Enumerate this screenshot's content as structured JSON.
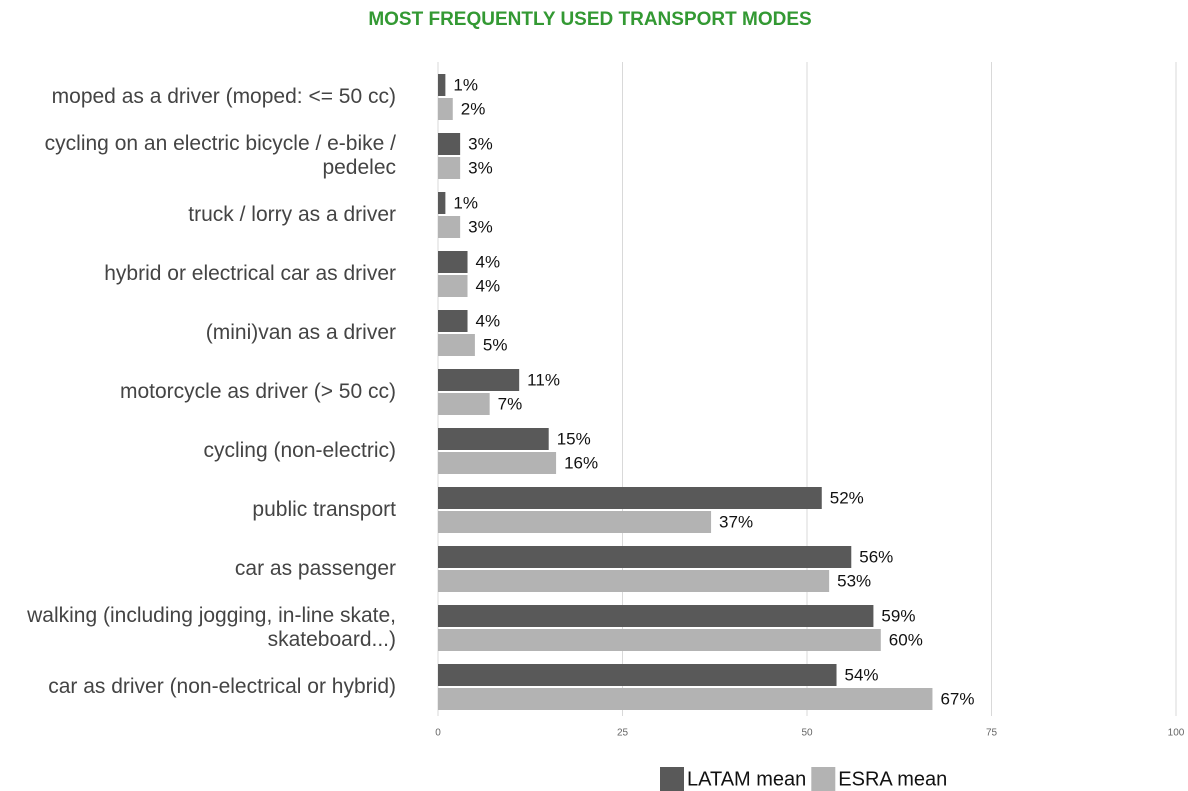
{
  "chart_data": {
    "type": "bar",
    "orientation": "horizontal",
    "title": "MOST FREQUENTLY USED TRANSPORT MODES",
    "categories": [
      "moped as a driver (moped: <= 50 cc)",
      "cycling on an electric bicycle / e-bike / pedelec",
      "truck / lorry as a driver",
      "hybrid or electrical car as driver",
      "(mini)van as a driver",
      "motorcycle as driver (> 50 cc)",
      "cycling (non-electric)",
      "public transport",
      "car as passenger",
      "walking (including jogging, in-line skate, skateboard...)",
      "car as driver (non-electrical or hybrid)"
    ],
    "series": [
      {
        "name": "LATAM mean",
        "color": "#595959",
        "values": [
          1,
          3,
          1,
          4,
          4,
          11,
          15,
          52,
          56,
          59,
          54
        ],
        "value_labels": [
          "1%",
          "3%",
          "1%",
          "4%",
          "4%",
          "11%",
          "15%",
          "52%",
          "56%",
          "59%",
          "54%"
        ]
      },
      {
        "name": "ESRA mean",
        "color": "#b3b3b3",
        "values": [
          2,
          3,
          3,
          4,
          5,
          7,
          16,
          37,
          53,
          60,
          67
        ],
        "value_labels": [
          "2%",
          "3%",
          "3%",
          "4%",
          "5%",
          "7%",
          "16%",
          "37%",
          "53%",
          "60%",
          "67%"
        ]
      }
    ],
    "xlim": [
      0,
      100
    ],
    "xticks": [
      0,
      25,
      50,
      75,
      100
    ],
    "grid": true,
    "legend": "bottom"
  }
}
